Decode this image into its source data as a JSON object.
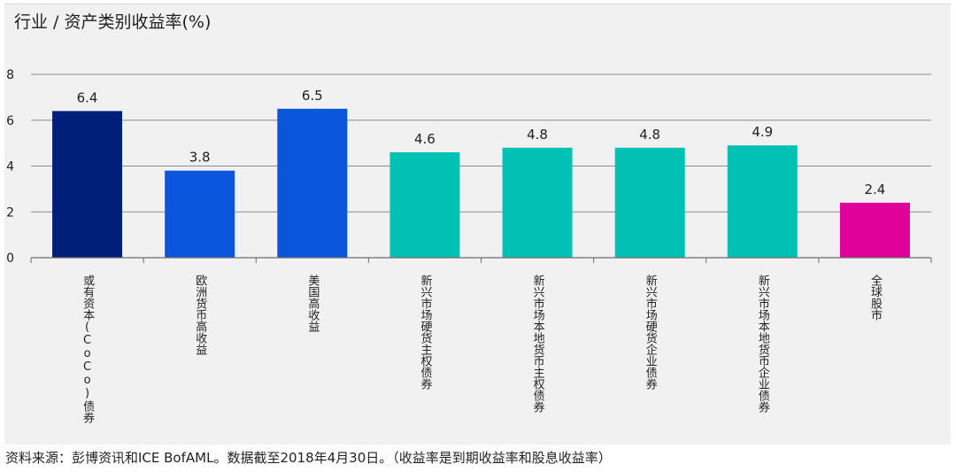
{
  "chart_data": {
    "type": "bar",
    "title": "行业 / 资产类别收益率(%)",
    "categories": [
      "或有资本(CoCo)债券",
      "欧洲货币高收益",
      "美国高收益",
      "新兴市场硬货主权债券",
      "新兴市场本地货币主权债券",
      "新兴市场硬货企业债券",
      "新兴市场本地货币企业债券",
      "全球股市"
    ],
    "values": [
      6.4,
      3.8,
      6.5,
      4.6,
      4.8,
      4.8,
      4.9,
      2.4
    ],
    "value_labels": [
      "6.4",
      "3.8",
      "6.5",
      "4.6",
      "4.8",
      "4.8",
      "4.9",
      "2.4"
    ],
    "colors": [
      "#001e7a",
      "#0a55db",
      "#0a55db",
      "#00c1b3",
      "#00c1b3",
      "#00c1b3",
      "#00c1b3",
      "#e0009a"
    ],
    "ylim": [
      0,
      8
    ],
    "yticks": [
      "0",
      "2",
      "4",
      "6",
      "8"
    ],
    "grid": true,
    "xlabel": "",
    "ylabel": ""
  },
  "footer": {
    "source": "资料来源：彭博资讯和ICE BofAML。数据截至2018年4月30日。（收益率是到期收益率和股息收益率）"
  }
}
